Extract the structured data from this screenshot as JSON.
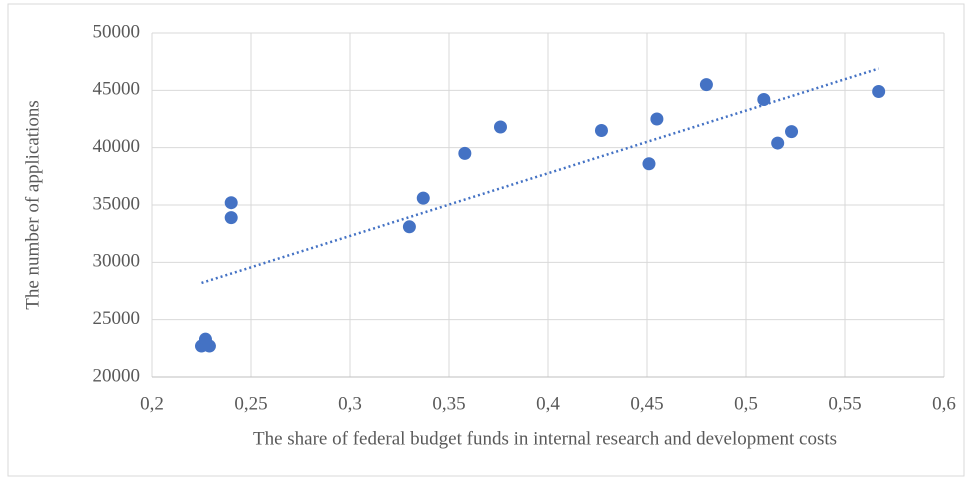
{
  "chart_data": {
    "type": "scatter",
    "xlabel": "The share of federal budget funds in internal research and development costs",
    "ylabel": "The number of applications",
    "series": [
      {
        "color": "#4472c4",
        "x": [
          0.225,
          0.227,
          0.229,
          0.24,
          0.24,
          0.33,
          0.337,
          0.358,
          0.376,
          0.427,
          0.451,
          0.455,
          0.48,
          0.509,
          0.516,
          0.523,
          0.567
        ],
        "values": [
          22700,
          23300,
          22700,
          35200,
          33900,
          33100,
          35600,
          39500,
          41800,
          41500,
          38600,
          42500,
          45500,
          44200,
          40400,
          41400,
          44900
        ]
      }
    ],
    "trendline": {
      "color": "#4472c4",
      "x": [
        0.225,
        0.567
      ],
      "values": [
        28200,
        46900
      ]
    },
    "xlim": [
      0.2,
      0.6
    ],
    "xticks": [
      {
        "value": 0.2,
        "label": "0,2"
      },
      {
        "value": 0.25,
        "label": "0,25"
      },
      {
        "value": 0.3,
        "label": "0,3"
      },
      {
        "value": 0.35,
        "label": "0,35"
      },
      {
        "value": 0.4,
        "label": "0,4"
      },
      {
        "value": 0.45,
        "label": "0,45"
      },
      {
        "value": 0.5,
        "label": "0,5"
      },
      {
        "value": 0.55,
        "label": "0,55"
      },
      {
        "value": 0.6,
        "label": "0,6"
      }
    ],
    "ylim": [
      20000,
      50000
    ],
    "yticks": [
      20000,
      25000,
      30000,
      35000,
      40000,
      45000,
      50000
    ],
    "grid": true
  }
}
